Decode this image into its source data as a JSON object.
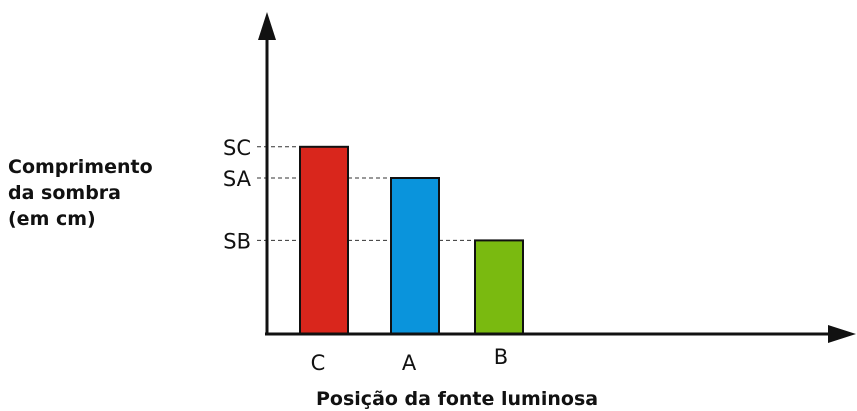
{
  "chart_data": {
    "type": "bar",
    "categories": [
      "C",
      "A",
      "B"
    ],
    "y_tick_labels": [
      "SC",
      "SA",
      "SB"
    ],
    "values": [
      3,
      2.5,
      1.5
    ],
    "ylim": [
      0,
      5
    ],
    "ylabel_lines": [
      "Comprimento",
      "da sombra",
      "(em cm)"
    ],
    "xlabel": "Posição da fonte luminosa",
    "grid": false,
    "colors": [
      "#d9261c",
      "#0a94dc",
      "#7aba10"
    ],
    "axis_color": "#111111"
  }
}
